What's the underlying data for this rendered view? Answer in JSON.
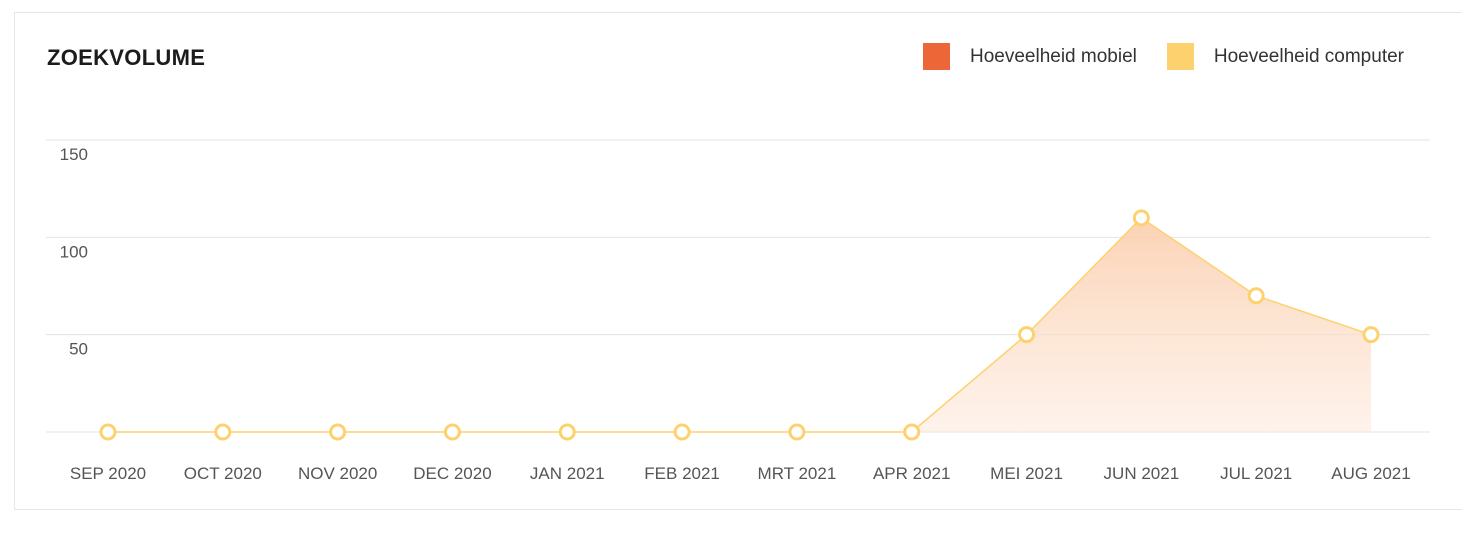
{
  "chart_data": {
    "type": "area",
    "title": "ZOEKVOLUME",
    "categories": [
      "SEP 2020",
      "OCT 2020",
      "NOV 2020",
      "DEC 2020",
      "JAN 2021",
      "FEB 2021",
      "MRT 2021",
      "APR 2021",
      "MEI 2021",
      "JUN 2021",
      "JUL 2021",
      "AUG 2021"
    ],
    "series": [
      {
        "name": "Hoeveelheid mobiel",
        "color": "#ec6637",
        "values": [
          0,
          0,
          0,
          0,
          0,
          0,
          0,
          0,
          50,
          110,
          70,
          50
        ]
      },
      {
        "name": "Hoeveelheid computer",
        "color": "#fdd26e",
        "values": [
          0,
          0,
          0,
          0,
          0,
          0,
          0,
          0,
          50,
          110,
          70,
          50
        ]
      }
    ],
    "ylim": [
      0,
      150
    ],
    "yticks": [
      50,
      100,
      150
    ],
    "grid": true,
    "legend_position": "top-right"
  }
}
